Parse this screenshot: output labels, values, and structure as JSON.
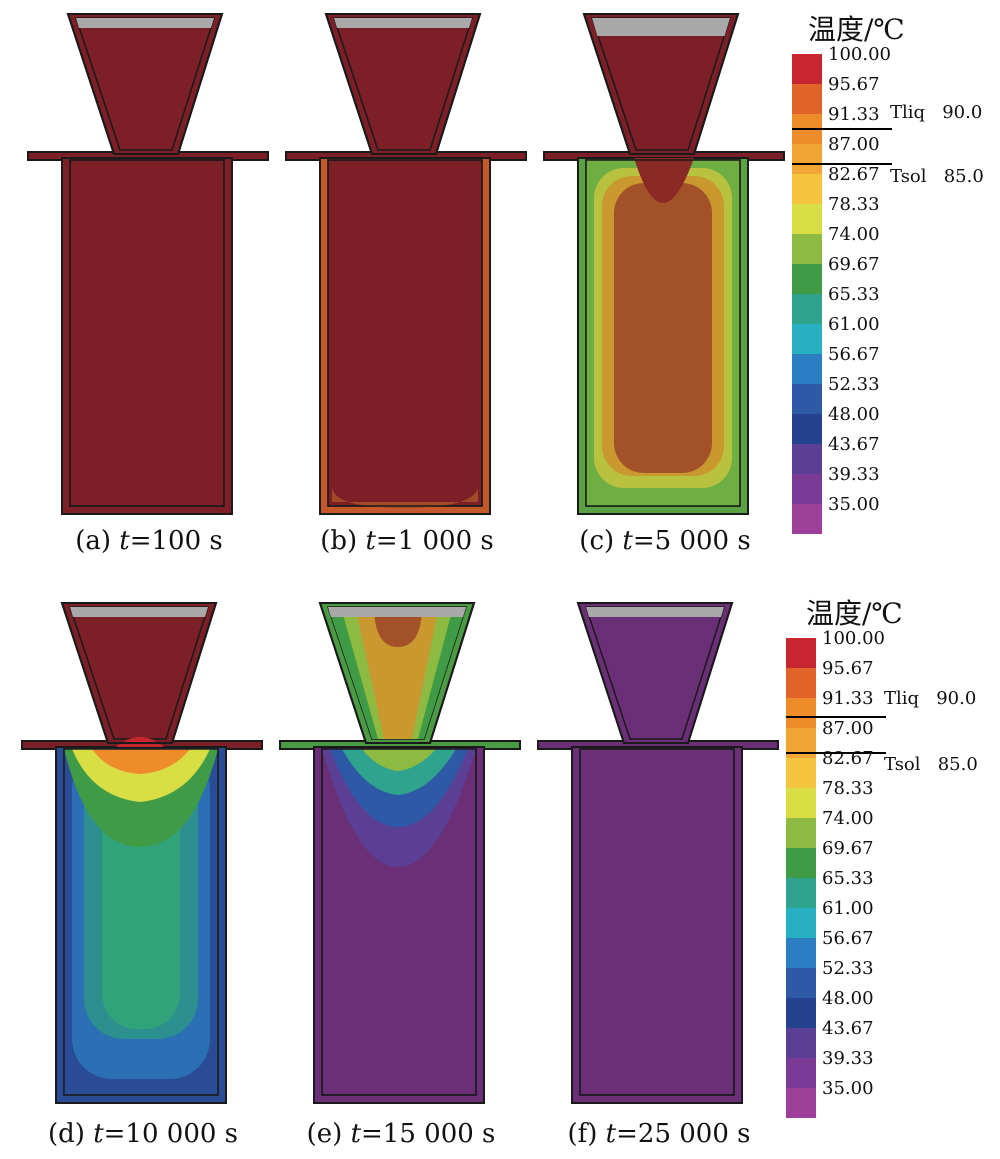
{
  "colors": {
    "outline": "#1a1a1a",
    "riser_cap": "#a9a9a9",
    "scale": [
      "#c8262e",
      "#e0632a",
      "#ee8c2c",
      "#f1a535",
      "#f5c43e",
      "#d8de43",
      "#8dbb42",
      "#3f9b45",
      "#2fa38d",
      "#27b0c2",
      "#2b7ec1",
      "#2d59a6",
      "#23418f",
      "#5a3f95",
      "#7a3a95",
      "#9c4099"
    ]
  },
  "legend": {
    "title": "温度/℃",
    "values": [
      "100.00",
      "95.67",
      "91.33",
      "87.00",
      "82.67",
      "78.33",
      "74.00",
      "69.67",
      "65.33",
      "61.00",
      "56.67",
      "52.33",
      "48.00",
      "43.67",
      "39.33",
      "35.00"
    ],
    "liquidus": {
      "label": "Tliq",
      "value": "90.0"
    },
    "solidus": {
      "label": "Tsol",
      "value": "85.0"
    }
  },
  "panels": [
    {
      "tag": "(a)",
      "var": "t",
      "value": "=100 s",
      "state": "hot"
    },
    {
      "tag": "(b)",
      "var": "t",
      "value": "=1 000 s",
      "state": "early"
    },
    {
      "tag": "(c)",
      "var": "t",
      "value": "=5 000 s",
      "state": "mid"
    },
    {
      "tag": "(d)",
      "var": "t",
      "value": "=10 000 s",
      "state": "late"
    },
    {
      "tag": "(e)",
      "var": "t",
      "value": "=15 000 s",
      "state": "later"
    },
    {
      "tag": "(f)",
      "var": "t",
      "value": "=25 000 s",
      "state": "cold"
    }
  ]
}
